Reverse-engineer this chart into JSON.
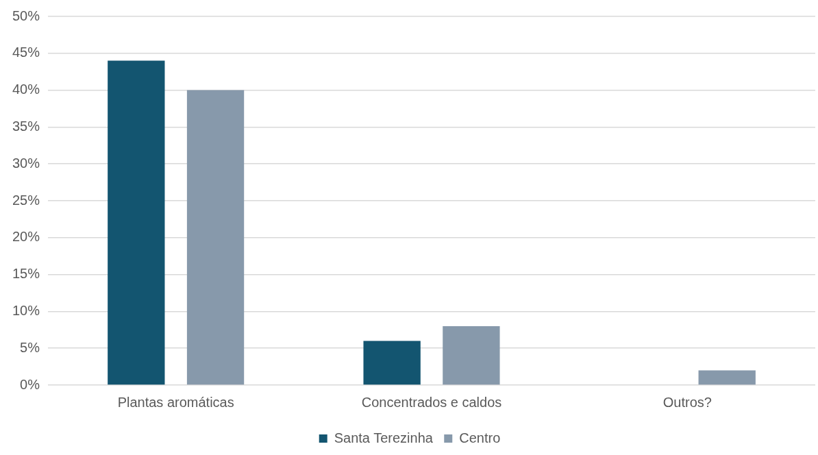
{
  "chart_data": {
    "type": "bar",
    "categories": [
      "Plantas aromáticas",
      "Concentrados e caldos",
      "Outros?"
    ],
    "series": [
      {
        "name": "Santa Terezinha",
        "color": "#135570",
        "values": [
          44,
          6,
          0
        ]
      },
      {
        "name": "Centro",
        "color": "#8799ab",
        "values": [
          40,
          8,
          2
        ]
      }
    ],
    "ylim": [
      0,
      50
    ],
    "yticks": [
      {
        "value": 0,
        "label": "0%"
      },
      {
        "value": 5,
        "label": "5%"
      },
      {
        "value": 10,
        "label": "10%"
      },
      {
        "value": 15,
        "label": "15%"
      },
      {
        "value": 20,
        "label": "20%"
      },
      {
        "value": 25,
        "label": "25%"
      },
      {
        "value": 30,
        "label": "30%"
      },
      {
        "value": 35,
        "label": "35%"
      },
      {
        "value": 40,
        "label": "40%"
      },
      {
        "value": 45,
        "label": "45%"
      },
      {
        "value": 50,
        "label": "50%"
      }
    ],
    "grid": "y",
    "legend": "bottom"
  }
}
